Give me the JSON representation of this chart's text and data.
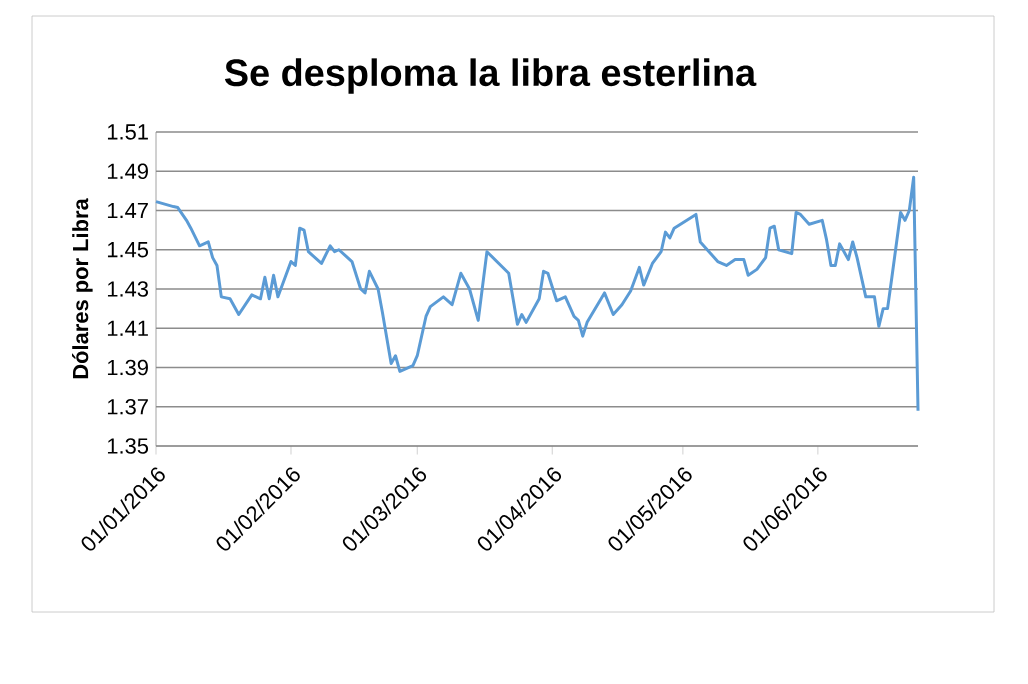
{
  "chart_data": {
    "type": "line",
    "title": "Se desploma la libra esterlina",
    "ylabel": "Dólares por Libra",
    "x": [
      "2016-01-01",
      "2016-01-05",
      "2016-01-06",
      "2016-01-08",
      "2016-01-09",
      "2016-01-11",
      "2016-01-13",
      "2016-01-14",
      "2016-01-15",
      "2016-01-16",
      "2016-01-18",
      "2016-01-20",
      "2016-01-23",
      "2016-01-25",
      "2016-01-26",
      "2016-01-27",
      "2016-01-28",
      "2016-01-29",
      "2016-02-01",
      "2016-02-02",
      "2016-02-03",
      "2016-02-04",
      "2016-02-05",
      "2016-02-08",
      "2016-02-10",
      "2016-02-11",
      "2016-02-12",
      "2016-02-15",
      "2016-02-17",
      "2016-02-18",
      "2016-02-19",
      "2016-02-21",
      "2016-02-22",
      "2016-02-24",
      "2016-02-25",
      "2016-02-26",
      "2016-02-29",
      "2016-03-01",
      "2016-03-03",
      "2016-03-04",
      "2016-03-07",
      "2016-03-09",
      "2016-03-11",
      "2016-03-13",
      "2016-03-15",
      "2016-03-17",
      "2016-03-22",
      "2016-03-23",
      "2016-03-24",
      "2016-03-25",
      "2016-03-26",
      "2016-03-29",
      "2016-03-30",
      "2016-03-31",
      "2016-04-02",
      "2016-04-04",
      "2016-04-06",
      "2016-04-07",
      "2016-04-08",
      "2016-04-09",
      "2016-04-13",
      "2016-04-15",
      "2016-04-17",
      "2016-04-19",
      "2016-04-21",
      "2016-04-22",
      "2016-04-24",
      "2016-04-26",
      "2016-04-27",
      "2016-04-28",
      "2016-04-29",
      "2016-05-04",
      "2016-05-05",
      "2016-05-07",
      "2016-05-09",
      "2016-05-11",
      "2016-05-13",
      "2016-05-15",
      "2016-05-16",
      "2016-05-18",
      "2016-05-20",
      "2016-05-21",
      "2016-05-22",
      "2016-05-23",
      "2016-05-26",
      "2016-05-27",
      "2016-05-28",
      "2016-05-30",
      "2016-06-02",
      "2016-06-03",
      "2016-06-04",
      "2016-06-05",
      "2016-06-06",
      "2016-06-07",
      "2016-06-08",
      "2016-06-09",
      "2016-06-10",
      "2016-06-12",
      "2016-06-14",
      "2016-06-15",
      "2016-06-16",
      "2016-06-17",
      "2016-06-18",
      "2016-06-20",
      "2016-06-21",
      "2016-06-22",
      "2016-06-23",
      "2016-06-24"
    ],
    "series": [
      {
        "color": "#5b9bd5",
        "values": [
          1.4745,
          1.472,
          1.4715,
          1.465,
          1.461,
          1.452,
          1.454,
          1.446,
          1.442,
          1.426,
          1.425,
          1.417,
          1.427,
          1.425,
          1.436,
          1.425,
          1.437,
          1.426,
          1.444,
          1.442,
          1.461,
          1.46,
          1.449,
          1.443,
          1.452,
          1.449,
          1.45,
          1.444,
          1.43,
          1.428,
          1.439,
          1.43,
          1.418,
          1.392,
          1.396,
          1.388,
          1.391,
          1.396,
          1.416,
          1.421,
          1.426,
          1.422,
          1.438,
          1.43,
          1.414,
          1.449,
          1.438,
          1.425,
          1.412,
          1.417,
          1.413,
          1.425,
          1.439,
          1.438,
          1.424,
          1.426,
          1.416,
          1.414,
          1.406,
          1.413,
          1.428,
          1.417,
          1.422,
          1.429,
          1.441,
          1.432,
          1.443,
          1.449,
          1.459,
          1.456,
          1.461,
          1.468,
          1.454,
          1.449,
          1.444,
          1.442,
          1.445,
          1.445,
          1.437,
          1.44,
          1.446,
          1.461,
          1.462,
          1.45,
          1.448,
          1.469,
          1.468,
          1.463,
          1.465,
          1.455,
          1.442,
          1.442,
          1.453,
          1.449,
          1.445,
          1.454,
          1.446,
          1.426,
          1.426,
          1.411,
          1.42,
          1.42,
          1.436,
          1.469,
          1.465,
          1.47,
          1.487,
          1.368
        ]
      }
    ],
    "xlim": [
      "2016-01-01",
      "2016-06-24"
    ],
    "xticks": [
      {
        "value": "2016-01-01",
        "label": "01/01/2016"
      },
      {
        "value": "2016-02-01",
        "label": "01/02/2016"
      },
      {
        "value": "2016-03-01",
        "label": "01/03/2016"
      },
      {
        "value": "2016-04-01",
        "label": "01/04/2016"
      },
      {
        "value": "2016-05-01",
        "label": "01/05/2016"
      },
      {
        "value": "2016-06-01",
        "label": "01/06/2016"
      }
    ],
    "ylim": [
      1.35,
      1.51
    ],
    "yticks": [
      1.35,
      1.37,
      1.39,
      1.41,
      1.43,
      1.45,
      1.47,
      1.49,
      1.51
    ],
    "grid": "y",
    "legend": false,
    "marker": "none",
    "line_style": "solid"
  }
}
